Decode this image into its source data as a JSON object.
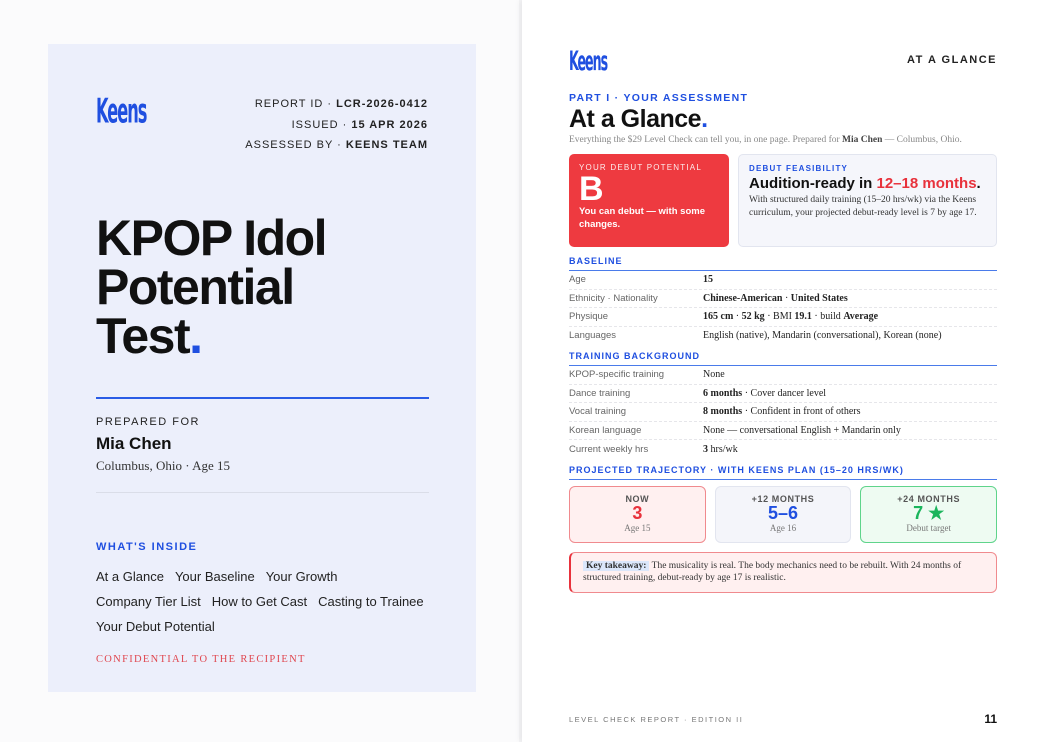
{
  "cover": {
    "logo": "Keens",
    "meta": [
      {
        "label": "REPORT ID · ",
        "value": "LCR-2026-0412"
      },
      {
        "label": "ISSUED · ",
        "value": "15 APR 2026"
      },
      {
        "label": "ASSESSED BY · ",
        "value": "KEENS TEAM"
      }
    ],
    "title_lines": [
      "KPOP Idol",
      "Potential",
      "Test"
    ],
    "title_dot": ".",
    "prepared_label": "PREPARED FOR",
    "name": "Mia Chen",
    "location": "Columbus, Ohio · Age 15",
    "inside_label": "WHAT'S INSIDE",
    "inside_items": [
      "At a Glance",
      "Your Baseline",
      "Your Growth",
      "Company Tier List",
      "How to Get Cast",
      "Casting to Trainee",
      "Your Debut Potential"
    ],
    "confidential": "CONFIDENTIAL TO THE RECIPIENT"
  },
  "page": {
    "logo": "Keens",
    "header": "AT A GLANCE",
    "kicker": "PART I · YOUR ASSESSMENT",
    "title": "At a Glance",
    "dot": ".",
    "intro_pre": "Everything the $29 Level Check can tell you, in one page. Prepared for ",
    "intro_name": "Mia Chen",
    "intro_post": " — Columbus, Ohio.",
    "potential": {
      "label": "YOUR DEBUT POTENTIAL",
      "grade": "B",
      "text": "You can debut — with some changes."
    },
    "feasibility": {
      "label": "DEBUT FEASIBILITY",
      "head_pre": "Audition-ready in ",
      "head_hl": "12–18 months",
      "head_post": ".",
      "body": "With structured daily training (15–20 hrs/wk) via the Keens curriculum, your projected debut-ready level is 7 by age 17."
    },
    "baseline": {
      "title": "BASELINE",
      "rows": [
        {
          "k": "Age",
          "v": "<b>15</b>"
        },
        {
          "k": "Ethnicity · Nationality",
          "v": "<b>Chinese-American</b> · <b>United States</b>"
        },
        {
          "k": "Physique",
          "v": "<b>165 cm</b> · <b>52 kg</b> · BMI <b>19.1</b> · build <b>Average</b>"
        },
        {
          "k": "Languages",
          "v": "English (native), Mandarin (conversational), Korean (none)"
        }
      ]
    },
    "training": {
      "title": "TRAINING BACKGROUND",
      "rows": [
        {
          "k": "KPOP-specific training",
          "v": "None"
        },
        {
          "k": "Dance training",
          "v": "<b>6 months</b> · Cover dancer level"
        },
        {
          "k": "Vocal training",
          "v": "<b>8 months</b> · Confident in front of others"
        },
        {
          "k": "Korean language",
          "v": "None — conversational English + Mandarin only"
        },
        {
          "k": "Current weekly hrs",
          "v": "<b>3</b> hrs/wk"
        }
      ]
    },
    "trajectory": {
      "title": "PROJECTED TRAJECTORY · WITH KEENS PLAN (15–20 HRS/WK)",
      "items": [
        {
          "head": "NOW",
          "value": "3",
          "sub": "Age 15",
          "color": "#e8323c"
        },
        {
          "head": "+12 MONTHS",
          "value": "5–6",
          "sub": "Age 16",
          "color": "#1f4fe0"
        },
        {
          "head": "+24 MONTHS",
          "value": "7 ★",
          "sub": "Debut target",
          "color": "#1bb55c"
        }
      ]
    },
    "takeaway_label": "Key takeaway:",
    "takeaway": "The musicality is real. The body mechanics need to be rebuilt. With 24 months of structured training, debut-ready by age 17 is realistic.",
    "footer": "LEVEL CHECK REPORT · EDITION II",
    "page_number": "11"
  },
  "colors": {
    "accent": "#1f4fe0",
    "red": "#e8323c",
    "green": "#1bb55c"
  }
}
